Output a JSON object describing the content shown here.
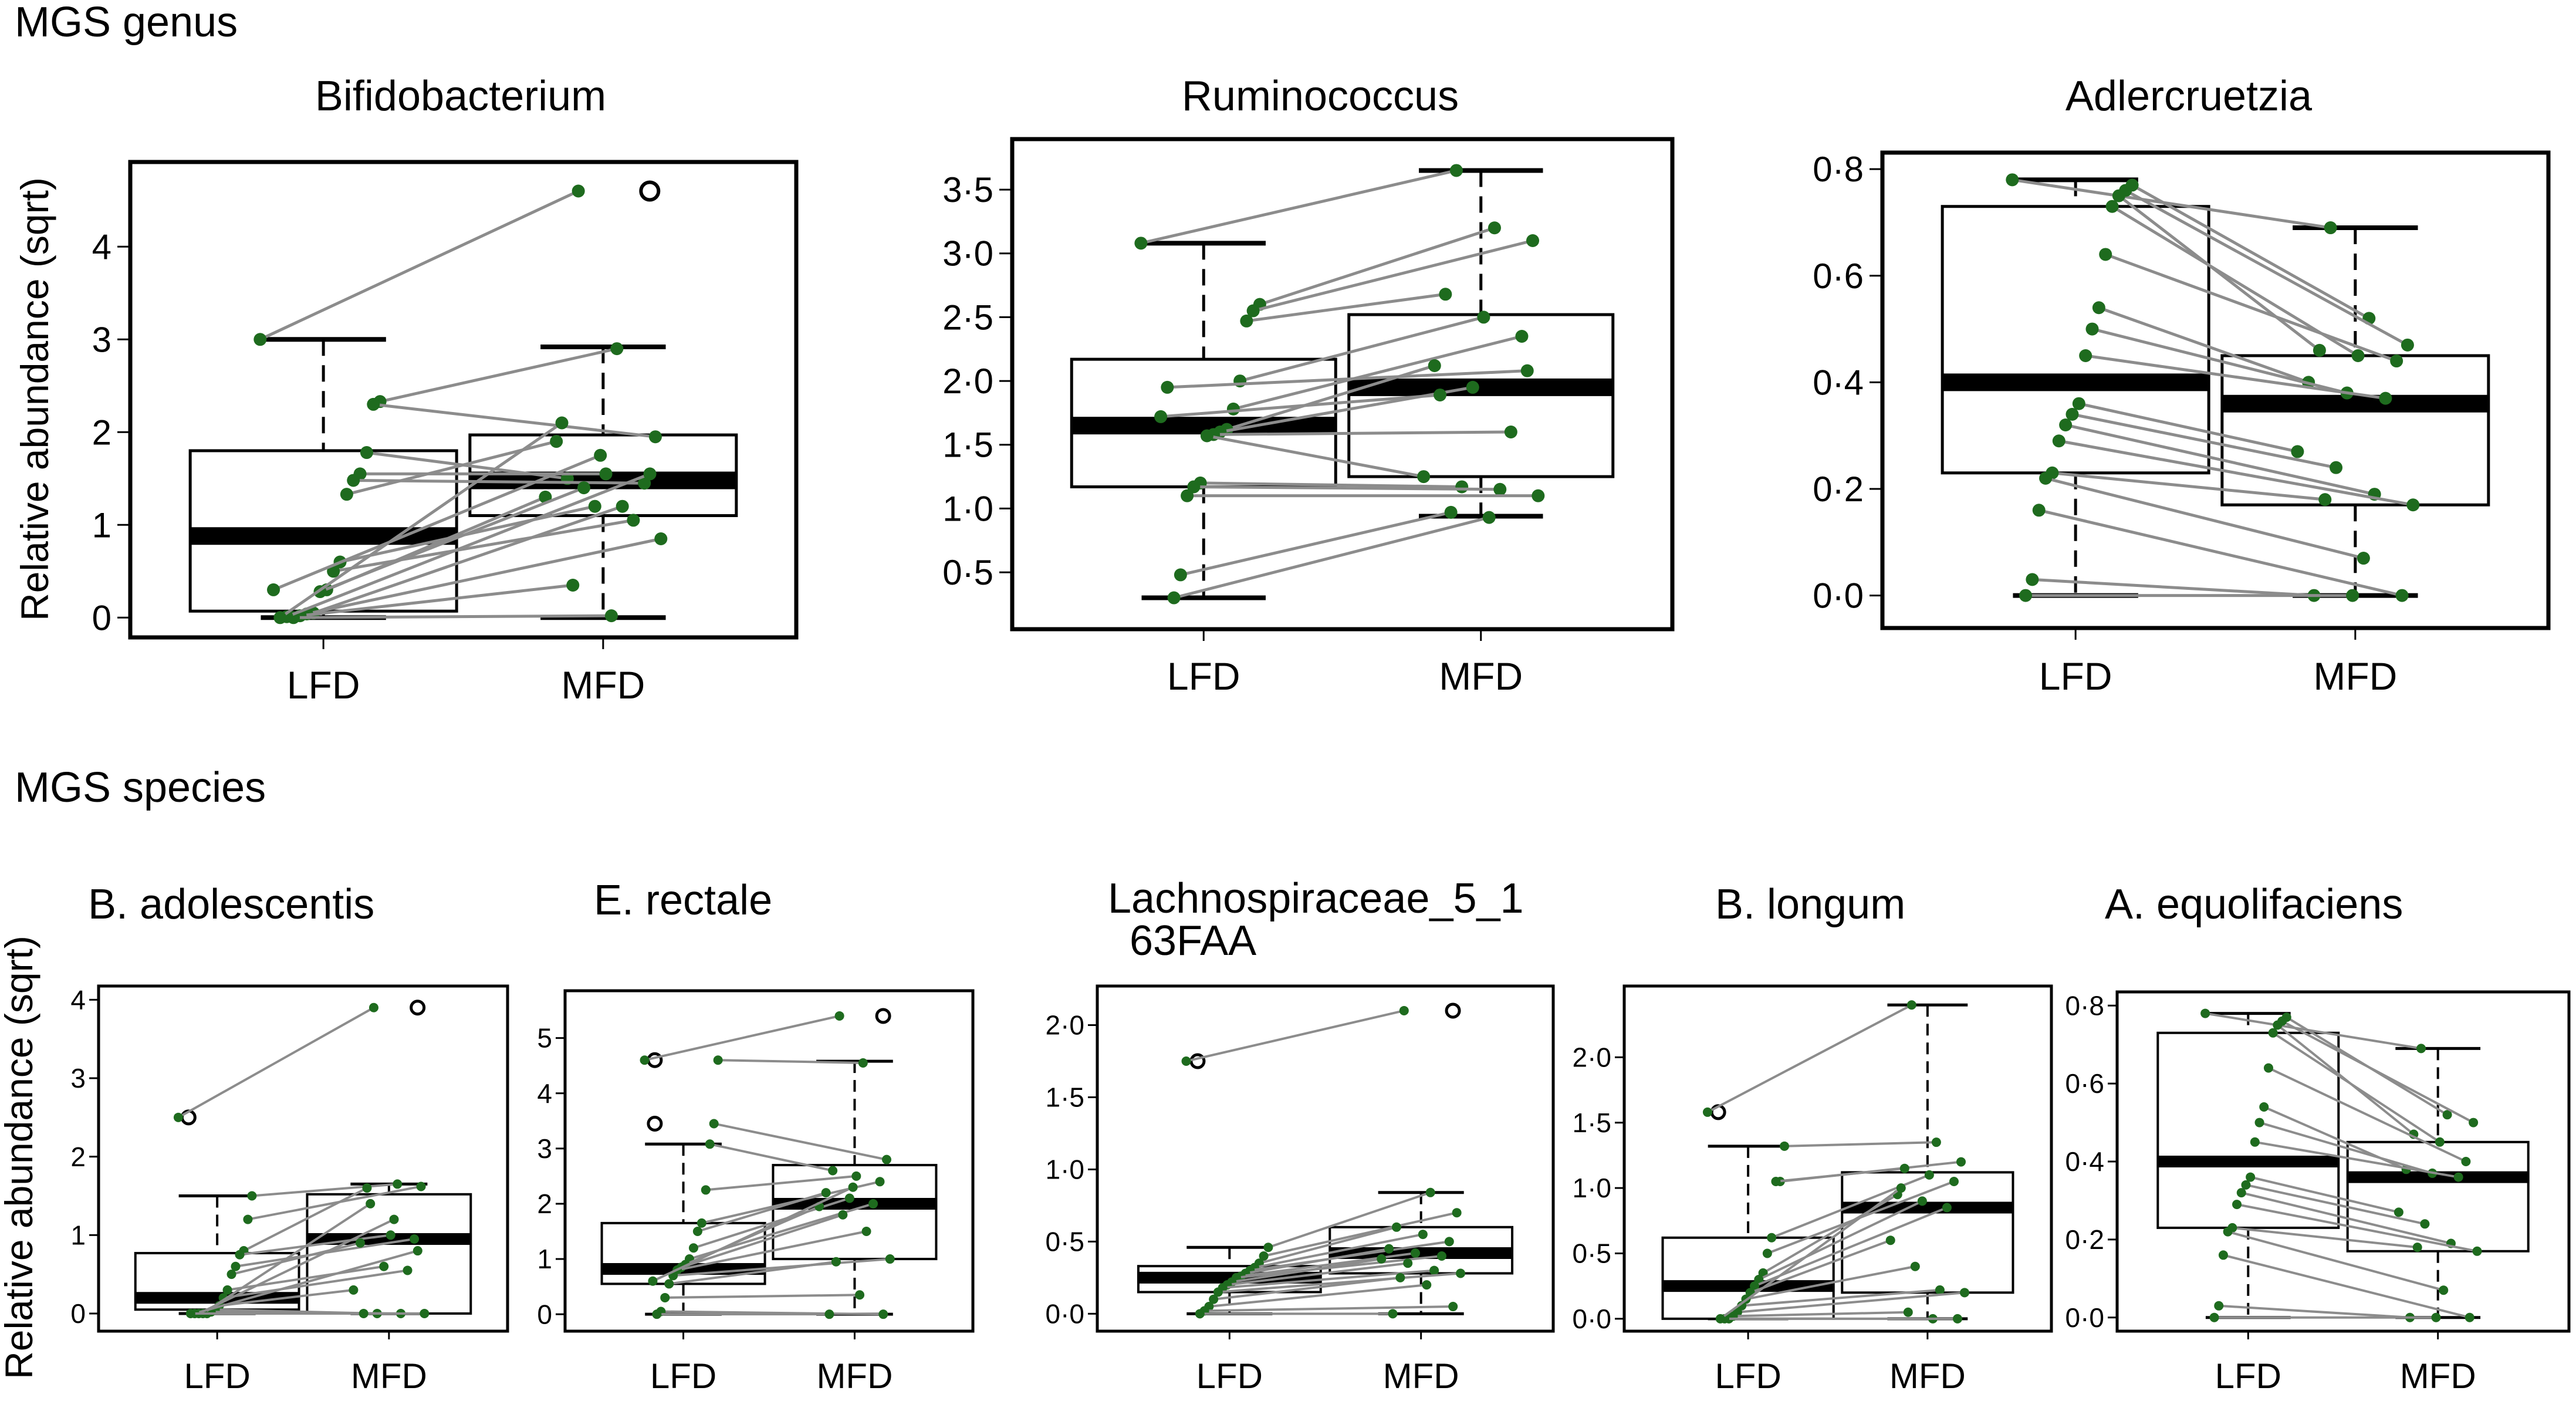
{
  "sections": [
    {
      "label": "MGS genus"
    },
    {
      "label": "MGS species"
    }
  ],
  "y_axis_label": "Relative abundance (sqrt)",
  "colors": {
    "point": "#1e6b1e",
    "line": "#8c8c8c",
    "box": "#000000",
    "background": "#ffffff"
  },
  "chart_data": [
    {
      "type": "boxplot",
      "title": "Bifidobacterium",
      "section": "MGS genus",
      "ylim": [
        -0.15,
        4.85
      ],
      "yticks": [
        0,
        1,
        2,
        3,
        4
      ],
      "tick_labels": [
        "0",
        "1",
        "2",
        "3",
        "4"
      ],
      "categories": [
        "LFD",
        "MFD"
      ],
      "boxes": [
        {
          "whisker_low": 0,
          "q1": 0.07,
          "median": 0.88,
          "q3": 1.8,
          "whisker_high": 3.0,
          "outliers": []
        },
        {
          "whisker_low": 0,
          "q1": 1.1,
          "median": 1.48,
          "q3": 1.97,
          "whisker_high": 2.92,
          "outliers": [
            4.6
          ]
        }
      ],
      "paired": [
        [
          3.0,
          4.6
        ],
        [
          2.33,
          2.9
        ],
        [
          2.3,
          1.95
        ],
        [
          1.78,
          1.5
        ],
        [
          1.55,
          1.55
        ],
        [
          1.48,
          1.45
        ],
        [
          1.33,
          1.9
        ],
        [
          0.6,
          1.2
        ],
        [
          0.5,
          1.05
        ],
        [
          0.3,
          1.3
        ],
        [
          0.28,
          1.4
        ],
        [
          0.05,
          1.2
        ],
        [
          0.04,
          0.85
        ],
        [
          0.02,
          0.35
        ],
        [
          0.0,
          0.02
        ],
        [
          0.01,
          1.55
        ],
        [
          0.0,
          2.1
        ],
        [
          0.3,
          1.75
        ]
      ]
    },
    {
      "type": "boxplot",
      "title": "Ruminococcus",
      "section": "MGS genus",
      "ylim": [
        0.1,
        3.85
      ],
      "yticks": [
        0.5,
        1.0,
        1.5,
        2.0,
        2.5,
        3.0,
        3.5
      ],
      "tick_labels": [
        "0·5",
        "1·0",
        "1·5",
        "2·0",
        "2·5",
        "3·0",
        "3·5"
      ],
      "categories": [
        "LFD",
        "MFD"
      ],
      "boxes": [
        {
          "whisker_low": 0.3,
          "q1": 1.17,
          "median": 1.65,
          "q3": 2.17,
          "whisker_high": 3.08,
          "outliers": []
        },
        {
          "whisker_low": 0.94,
          "q1": 1.25,
          "median": 1.95,
          "q3": 2.52,
          "whisker_high": 3.65,
          "outliers": []
        }
      ],
      "paired": [
        [
          3.08,
          3.65
        ],
        [
          2.6,
          3.2
        ],
        [
          2.55,
          3.1
        ],
        [
          2.47,
          2.68
        ],
        [
          2.0,
          2.5
        ],
        [
          1.78,
          2.35
        ],
        [
          1.62,
          2.12
        ],
        [
          1.6,
          1.95
        ],
        [
          1.58,
          1.6
        ],
        [
          1.57,
          1.25
        ],
        [
          1.2,
          1.17
        ],
        [
          1.17,
          1.15
        ],
        [
          1.1,
          1.1
        ],
        [
          0.48,
          0.97
        ],
        [
          0.3,
          0.93
        ],
        [
          1.95,
          2.08
        ],
        [
          1.72,
          1.89
        ]
      ]
    },
    {
      "type": "boxplot",
      "title": "Adlercruetzia",
      "section": "MGS genus",
      "ylim": [
        -0.05,
        0.82
      ],
      "yticks": [
        0.0,
        0.2,
        0.4,
        0.6,
        0.8
      ],
      "tick_labels": [
        "0·0",
        "0·2",
        "0·4",
        "0·6",
        "0·8"
      ],
      "categories": [
        "LFD",
        "MFD"
      ],
      "boxes": [
        {
          "whisker_low": 0.0,
          "q1": 0.23,
          "median": 0.4,
          "q3": 0.73,
          "whisker_high": 0.78,
          "outliers": []
        },
        {
          "whisker_low": 0.0,
          "q1": 0.17,
          "median": 0.36,
          "q3": 0.45,
          "whisker_high": 0.69,
          "outliers": []
        }
      ],
      "paired": [
        [
          0.78,
          0.69
        ],
        [
          0.77,
          0.52
        ],
        [
          0.76,
          0.47
        ],
        [
          0.75,
          0.46
        ],
        [
          0.73,
          0.45
        ],
        [
          0.64,
          0.44
        ],
        [
          0.54,
          0.4
        ],
        [
          0.5,
          0.38
        ],
        [
          0.45,
          0.37
        ],
        [
          0.36,
          0.27
        ],
        [
          0.34,
          0.24
        ],
        [
          0.32,
          0.19
        ],
        [
          0.29,
          0.17
        ],
        [
          0.23,
          0.18
        ],
        [
          0.22,
          0.07
        ],
        [
          0.16,
          0.0
        ],
        [
          0.03,
          0.0
        ],
        [
          0.0,
          0.0
        ]
      ]
    },
    {
      "type": "boxplot",
      "title": "B. adolescentis",
      "section": "MGS species",
      "ylim": [
        -0.15,
        4.1
      ],
      "yticks": [
        0,
        1,
        2,
        3,
        4
      ],
      "tick_labels": [
        "0",
        "1",
        "2",
        "3",
        "4"
      ],
      "categories": [
        "LFD",
        "MFD"
      ],
      "boxes": [
        {
          "whisker_low": 0,
          "q1": 0.05,
          "median": 0.2,
          "q3": 0.77,
          "whisker_high": 1.5,
          "outliers": [
            2.5
          ]
        },
        {
          "whisker_low": 0,
          "q1": 0.0,
          "median": 0.95,
          "q3": 1.52,
          "whisker_high": 1.65,
          "outliers": [
            3.9
          ]
        }
      ],
      "paired": [
        [
          2.5,
          3.9
        ],
        [
          1.5,
          1.65
        ],
        [
          1.2,
          1.62
        ],
        [
          0.8,
          1.6
        ],
        [
          0.75,
          1.0
        ],
        [
          0.6,
          0.95
        ],
        [
          0.5,
          0.9
        ],
        [
          0.3,
          0.6
        ],
        [
          0.2,
          0.55
        ],
        [
          0.1,
          0.3
        ],
        [
          0.05,
          0.0
        ],
        [
          0.02,
          0.0
        ],
        [
          0.0,
          0.0
        ],
        [
          0.0,
          1.4
        ],
        [
          0.0,
          1.2
        ],
        [
          0.0,
          0.8
        ],
        [
          0.0,
          0.0
        ]
      ]
    },
    {
      "type": "boxplot",
      "title": "E. rectale",
      "section": "MGS species",
      "ylim": [
        -0.2,
        5.75
      ],
      "yticks": [
        0,
        1,
        2,
        3,
        4,
        5
      ],
      "tick_labels": [
        "0",
        "1",
        "2",
        "3",
        "4",
        "5"
      ],
      "categories": [
        "LFD",
        "MFD"
      ],
      "boxes": [
        {
          "whisker_low": 0,
          "q1": 0.55,
          "median": 0.82,
          "q3": 1.65,
          "whisker_high": 3.08,
          "outliers": [
            3.45,
            4.6
          ]
        },
        {
          "whisker_low": 0,
          "q1": 1.0,
          "median": 2.0,
          "q3": 2.7,
          "whisker_high": 4.58,
          "outliers": [
            5.4
          ]
        }
      ],
      "paired": [
        [
          4.6,
          5.4
        ],
        [
          4.6,
          4.55
        ],
        [
          3.45,
          2.8
        ],
        [
          3.08,
          2.6
        ],
        [
          2.25,
          2.5
        ],
        [
          1.65,
          2.4
        ],
        [
          1.5,
          2.2
        ],
        [
          1.2,
          2.1
        ],
        [
          1.0,
          2.0
        ],
        [
          0.9,
          1.95
        ],
        [
          0.85,
          1.8
        ],
        [
          0.8,
          1.5
        ],
        [
          0.7,
          1.0
        ],
        [
          0.55,
          0.95
        ],
        [
          0.3,
          0.35
        ],
        [
          0.05,
          0.0
        ],
        [
          0.0,
          0.0
        ],
        [
          0.6,
          2.3
        ]
      ]
    },
    {
      "type": "boxplot",
      "title": "Lachnospiraceae_5_1 63FAA",
      "section": "MGS species",
      "ylim": [
        -0.08,
        2.23
      ],
      "yticks": [
        0.0,
        0.5,
        1.0,
        1.5,
        2.0
      ],
      "tick_labels": [
        "0·0",
        "0·5",
        "1·0",
        "1·5",
        "2·0"
      ],
      "categories": [
        "LFD",
        "MFD"
      ],
      "boxes": [
        {
          "whisker_low": 0.0,
          "q1": 0.15,
          "median": 0.25,
          "q3": 0.33,
          "whisker_high": 0.46,
          "outliers": [
            1.75
          ]
        },
        {
          "whisker_low": 0.0,
          "q1": 0.28,
          "median": 0.42,
          "q3": 0.6,
          "whisker_high": 0.84,
          "outliers": [
            2.1
          ]
        }
      ],
      "paired": [
        [
          1.75,
          2.1
        ],
        [
          0.46,
          0.84
        ],
        [
          0.4,
          0.7
        ],
        [
          0.35,
          0.6
        ],
        [
          0.32,
          0.55
        ],
        [
          0.3,
          0.5
        ],
        [
          0.28,
          0.45
        ],
        [
          0.26,
          0.42
        ],
        [
          0.25,
          0.4
        ],
        [
          0.22,
          0.38
        ],
        [
          0.2,
          0.35
        ],
        [
          0.18,
          0.3
        ],
        [
          0.15,
          0.28
        ],
        [
          0.1,
          0.25
        ],
        [
          0.05,
          0.2
        ],
        [
          0.02,
          0.05
        ],
        [
          0.0,
          0.0
        ]
      ]
    },
    {
      "type": "boxplot",
      "title": "B. longum",
      "section": "MGS species",
      "ylim": [
        -0.05,
        2.5
      ],
      "yticks": [
        0.0,
        0.5,
        1.0,
        1.5,
        2.0
      ],
      "tick_labels": [
        "0·0",
        "0·5",
        "1·0",
        "1·5",
        "2·0"
      ],
      "categories": [
        "LFD",
        "MFD"
      ],
      "boxes": [
        {
          "whisker_low": 0.0,
          "q1": 0.0,
          "median": 0.25,
          "q3": 0.62,
          "whisker_high": 1.32,
          "outliers": [
            1.58
          ]
        },
        {
          "whisker_low": 0.0,
          "q1": 0.2,
          "median": 0.85,
          "q3": 1.12,
          "whisker_high": 2.4,
          "outliers": []
        }
      ],
      "paired": [
        [
          1.58,
          2.4
        ],
        [
          1.32,
          1.35
        ],
        [
          1.05,
          1.2
        ],
        [
          1.05,
          1.15
        ],
        [
          0.62,
          1.1
        ],
        [
          0.5,
          1.05
        ],
        [
          0.35,
          0.95
        ],
        [
          0.3,
          0.9
        ],
        [
          0.25,
          0.85
        ],
        [
          0.2,
          0.6
        ],
        [
          0.15,
          0.4
        ],
        [
          0.1,
          0.22
        ],
        [
          0.05,
          0.2
        ],
        [
          0.02,
          0.05
        ],
        [
          0.0,
          0.0
        ],
        [
          0.0,
          0.0
        ],
        [
          0.0,
          1.0
        ]
      ]
    },
    {
      "type": "boxplot",
      "title": "A. equolifaciens",
      "section": "MGS species",
      "ylim": [
        -0.02,
        0.82
      ],
      "yticks": [
        0.0,
        0.2,
        0.4,
        0.6,
        0.8
      ],
      "tick_labels": [
        "0·0",
        "0·2",
        "0·4",
        "0·6",
        "0·8"
      ],
      "categories": [
        "LFD",
        "MFD"
      ],
      "boxes": [
        {
          "whisker_low": 0.0,
          "q1": 0.23,
          "median": 0.4,
          "q3": 0.73,
          "whisker_high": 0.78,
          "outliers": []
        },
        {
          "whisker_low": 0.0,
          "q1": 0.17,
          "median": 0.36,
          "q3": 0.45,
          "whisker_high": 0.69,
          "outliers": []
        }
      ],
      "paired": [
        [
          0.78,
          0.69
        ],
        [
          0.77,
          0.52
        ],
        [
          0.76,
          0.5
        ],
        [
          0.75,
          0.47
        ],
        [
          0.73,
          0.45
        ],
        [
          0.64,
          0.4
        ],
        [
          0.54,
          0.38
        ],
        [
          0.5,
          0.37
        ],
        [
          0.45,
          0.36
        ],
        [
          0.36,
          0.27
        ],
        [
          0.34,
          0.24
        ],
        [
          0.32,
          0.19
        ],
        [
          0.29,
          0.17
        ],
        [
          0.23,
          0.18
        ],
        [
          0.22,
          0.07
        ],
        [
          0.16,
          0.0
        ],
        [
          0.03,
          0.0
        ],
        [
          0.0,
          0.0
        ]
      ]
    }
  ]
}
